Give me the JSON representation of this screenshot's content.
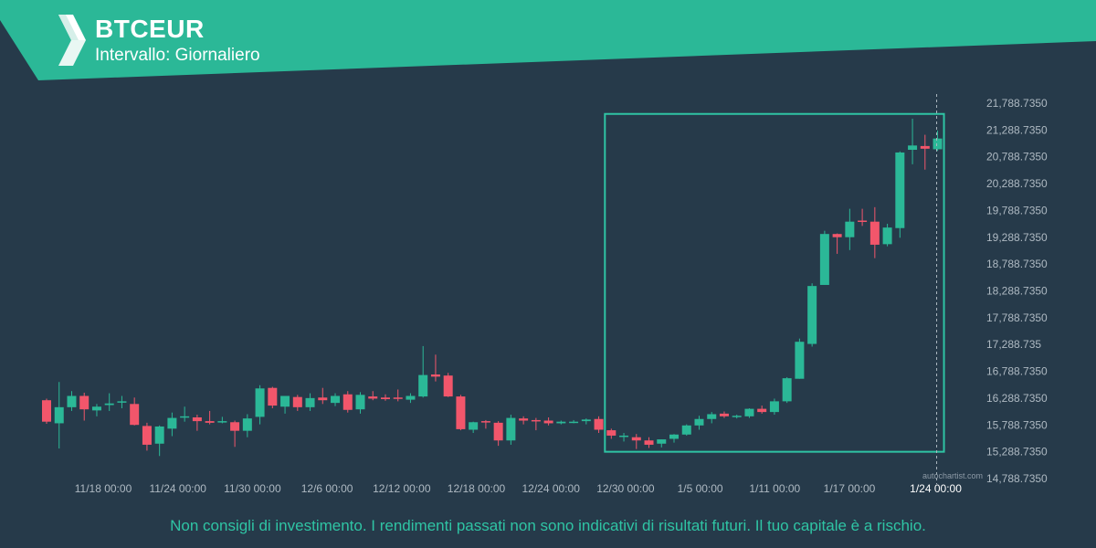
{
  "header": {
    "symbol": "BTCEUR",
    "interval_label": "Intervallo: Giornaliero",
    "logo_icon": "autochartist-logo-icon"
  },
  "watermark": "autochartist.com",
  "disclaimer": "Non consigli di investimento. I rendimenti passati non sono indicativi di risultati futuri. Il tuo capitale è a rischio.",
  "colors": {
    "background": "#263a4a",
    "header": "#2bb897",
    "bull": "#2bb897",
    "bear": "#f2566b",
    "pattern_box": "#2fc4a4",
    "axis_text": "#aeb9c2",
    "disclaimer": "#2fc4a4"
  },
  "chart_data": {
    "type": "candlestick",
    "instrument": "BTCEUR",
    "interval": "daily",
    "x_ticks": [
      "11/18 00:00",
      "11/24 00:00",
      "11/30 00:00",
      "12/6 00:00",
      "12/12 00:00",
      "12/18 00:00",
      "12/24 00:00",
      "12/30 00:00",
      "1/5 00:00",
      "1/11 00:00",
      "1/17 00:00"
    ],
    "x_tick_highlight": "1/24 00:00",
    "y_ticks": [
      21788.735,
      21288.735,
      20788.735,
      20288.735,
      19788.735,
      19288.735,
      18788.735,
      18288.735,
      17788.735,
      17288.735,
      16788.735,
      16288.735,
      15788.735,
      15288.735,
      14788.735
    ],
    "y_tick_labels": [
      "21,788.7350",
      "21,288.7350",
      "20,788.7350",
      "20,288.7350",
      "19,788.7350",
      "19,288.7350",
      "18,788.7350",
      "18,288.7350",
      "17,788.7350",
      "17,288.735",
      "16,788.7350",
      "16,288.7350",
      "15,788.7350",
      "15,288.7350",
      "14,788.7350"
    ],
    "ylim": [
      14788.735,
      21788.735
    ],
    "candles": [
      {
        "o": 16250,
        "h": 16280,
        "l": 15810,
        "c": 15850
      },
      {
        "o": 15820,
        "h": 16590,
        "l": 15350,
        "c": 16120
      },
      {
        "o": 16120,
        "h": 16420,
        "l": 16050,
        "c": 16330
      },
      {
        "o": 16330,
        "h": 16390,
        "l": 15870,
        "c": 16080
      },
      {
        "o": 16060,
        "h": 16180,
        "l": 15950,
        "c": 16130
      },
      {
        "o": 16160,
        "h": 16380,
        "l": 16050,
        "c": 16190
      },
      {
        "o": 16220,
        "h": 16330,
        "l": 16100,
        "c": 16230
      },
      {
        "o": 16180,
        "h": 16300,
        "l": 15780,
        "c": 15790
      },
      {
        "o": 15770,
        "h": 15830,
        "l": 15310,
        "c": 15420
      },
      {
        "o": 15440,
        "h": 15780,
        "l": 15210,
        "c": 15760
      },
      {
        "o": 15720,
        "h": 16020,
        "l": 15580,
        "c": 15920
      },
      {
        "o": 15950,
        "h": 16130,
        "l": 15850,
        "c": 15950
      },
      {
        "o": 15930,
        "h": 15980,
        "l": 15680,
        "c": 15860
      },
      {
        "o": 15860,
        "h": 16050,
        "l": 15800,
        "c": 15830
      },
      {
        "o": 15860,
        "h": 15940,
        "l": 15820,
        "c": 15860
      },
      {
        "o": 15840,
        "h": 15870,
        "l": 15380,
        "c": 15680
      },
      {
        "o": 15680,
        "h": 15990,
        "l": 15560,
        "c": 15910
      },
      {
        "o": 15940,
        "h": 16530,
        "l": 15800,
        "c": 16470
      },
      {
        "o": 16480,
        "h": 16500,
        "l": 16100,
        "c": 16150
      },
      {
        "o": 16130,
        "h": 16300,
        "l": 16000,
        "c": 16330
      },
      {
        "o": 16310,
        "h": 16350,
        "l": 16050,
        "c": 16120
      },
      {
        "o": 16120,
        "h": 16380,
        "l": 16050,
        "c": 16290
      },
      {
        "o": 16300,
        "h": 16480,
        "l": 16180,
        "c": 16250
      },
      {
        "o": 16200,
        "h": 16380,
        "l": 16140,
        "c": 16330
      },
      {
        "o": 16360,
        "h": 16420,
        "l": 16020,
        "c": 16070
      },
      {
        "o": 16080,
        "h": 16400,
        "l": 16000,
        "c": 16350
      },
      {
        "o": 16320,
        "h": 16420,
        "l": 16250,
        "c": 16280
      },
      {
        "o": 16300,
        "h": 16360,
        "l": 16240,
        "c": 16270
      },
      {
        "o": 16300,
        "h": 16450,
        "l": 16230,
        "c": 16280
      },
      {
        "o": 16260,
        "h": 16380,
        "l": 16200,
        "c": 16330
      },
      {
        "o": 16320,
        "h": 17260,
        "l": 16300,
        "c": 16720
      },
      {
        "o": 16730,
        "h": 17100,
        "l": 16600,
        "c": 16690
      },
      {
        "o": 16710,
        "h": 16760,
        "l": 16310,
        "c": 16320
      },
      {
        "o": 16320,
        "h": 16350,
        "l": 15690,
        "c": 15710
      },
      {
        "o": 15700,
        "h": 15850,
        "l": 15640,
        "c": 15840
      },
      {
        "o": 15860,
        "h": 15880,
        "l": 15720,
        "c": 15850
      },
      {
        "o": 15830,
        "h": 15860,
        "l": 15400,
        "c": 15500
      },
      {
        "o": 15500,
        "h": 15980,
        "l": 15420,
        "c": 15920
      },
      {
        "o": 15910,
        "h": 15950,
        "l": 15800,
        "c": 15870
      },
      {
        "o": 15880,
        "h": 15920,
        "l": 15690,
        "c": 15860
      },
      {
        "o": 15870,
        "h": 15930,
        "l": 15780,
        "c": 15820
      },
      {
        "o": 15820,
        "h": 15870,
        "l": 15800,
        "c": 15850
      },
      {
        "o": 15850,
        "h": 15880,
        "l": 15820,
        "c": 15850
      },
      {
        "o": 15860,
        "h": 15910,
        "l": 15800,
        "c": 15890
      },
      {
        "o": 15900,
        "h": 15950,
        "l": 15640,
        "c": 15700
      },
      {
        "o": 15690,
        "h": 15720,
        "l": 15530,
        "c": 15590
      },
      {
        "o": 15580,
        "h": 15640,
        "l": 15480,
        "c": 15590
      },
      {
        "o": 15560,
        "h": 15620,
        "l": 15340,
        "c": 15500
      },
      {
        "o": 15500,
        "h": 15560,
        "l": 15360,
        "c": 15420
      },
      {
        "o": 15440,
        "h": 15520,
        "l": 15370,
        "c": 15520
      },
      {
        "o": 15530,
        "h": 15620,
        "l": 15460,
        "c": 15610
      },
      {
        "o": 15610,
        "h": 15800,
        "l": 15590,
        "c": 15780
      },
      {
        "o": 15780,
        "h": 15960,
        "l": 15700,
        "c": 15900
      },
      {
        "o": 15900,
        "h": 16030,
        "l": 15820,
        "c": 15990
      },
      {
        "o": 16000,
        "h": 16040,
        "l": 15920,
        "c": 15950
      },
      {
        "o": 15950,
        "h": 15980,
        "l": 15910,
        "c": 15960
      },
      {
        "o": 15950,
        "h": 16100,
        "l": 15920,
        "c": 16090
      },
      {
        "o": 16090,
        "h": 16150,
        "l": 16000,
        "c": 16030
      },
      {
        "o": 16030,
        "h": 16280,
        "l": 15980,
        "c": 16230
      },
      {
        "o": 16230,
        "h": 16680,
        "l": 16200,
        "c": 16660
      },
      {
        "o": 16650,
        "h": 17400,
        "l": 16650,
        "c": 17340
      },
      {
        "o": 17300,
        "h": 18430,
        "l": 17250,
        "c": 18380
      },
      {
        "o": 18400,
        "h": 19410,
        "l": 18400,
        "c": 19350
      },
      {
        "o": 19350,
        "h": 19360,
        "l": 18980,
        "c": 19290
      },
      {
        "o": 19290,
        "h": 19820,
        "l": 19050,
        "c": 19580
      },
      {
        "o": 19600,
        "h": 19820,
        "l": 19500,
        "c": 19580
      },
      {
        "o": 19580,
        "h": 19850,
        "l": 18900,
        "c": 19150
      },
      {
        "o": 19160,
        "h": 19540,
        "l": 19120,
        "c": 19470
      },
      {
        "o": 19460,
        "h": 20890,
        "l": 19280,
        "c": 20870
      },
      {
        "o": 20920,
        "h": 21500,
        "l": 20650,
        "c": 21000
      },
      {
        "o": 20990,
        "h": 21200,
        "l": 20550,
        "c": 20940
      },
      {
        "o": 20930,
        "h": 21280,
        "l": 20900,
        "c": 21130
      }
    ],
    "pattern": {
      "type": "channel breakout region",
      "price_range": [
        15288.735,
        21588.735
      ],
      "start_candle": 45,
      "end_candle": 71
    }
  }
}
